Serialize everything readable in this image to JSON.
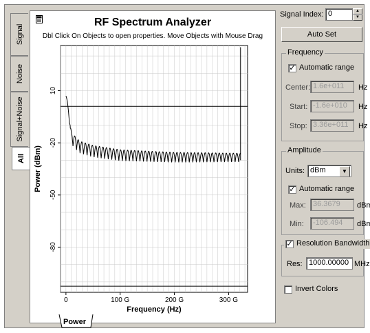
{
  "tabs": [
    {
      "label": "Signal"
    },
    {
      "label": "Noise"
    },
    {
      "label": "Signal+Noise"
    },
    {
      "label": "All",
      "active": true
    }
  ],
  "chart": {
    "title": "RF Spectrum Analyzer",
    "subtitle": "Dbl Click On Objects to open properties.  Move Objects with Mouse Drag",
    "bottom_tab": "Power"
  },
  "chart_data": {
    "type": "line",
    "title": "RF Spectrum Analyzer",
    "xlabel": "Frequency (Hz)",
    "ylabel": "Power (dBm)",
    "xlim": [
      -10,
      335
    ],
    "ylim": [
      -106,
      36
    ],
    "x_unit_note": "GHz",
    "x_ticks": [
      {
        "v": 0,
        "label": "0"
      },
      {
        "v": 100,
        "label": "100 G"
      },
      {
        "v": 200,
        "label": "200 G"
      },
      {
        "v": 300,
        "label": "300 G"
      }
    ],
    "y_ticks": [
      {
        "v": 10,
        "label": "10"
      },
      {
        "v": -20,
        "label": "-20"
      },
      {
        "v": -50,
        "label": "-50"
      },
      {
        "v": -80,
        "label": "-80"
      }
    ],
    "grid": true,
    "series": [
      {
        "decay": [
          [
            0,
            7
          ],
          [
            10,
            -17
          ],
          [
            25,
            -22
          ],
          [
            50,
            -24.5
          ],
          [
            100,
            -27
          ],
          [
            200,
            -28.5
          ],
          [
            320,
            -29
          ]
        ],
        "lobe_spacing_ghz": 6.5,
        "x_end": 322
      }
    ],
    "reference_lines": [
      {
        "orientation": "horizontal",
        "y": 1
      },
      {
        "orientation": "horizontal",
        "y": -102.5
      },
      {
        "orientation": "vertical",
        "x": 322,
        "y_range": [
          -30,
          35
        ]
      }
    ]
  },
  "controls": {
    "signal_index_label": "Signal Index:",
    "signal_index_value": "0",
    "auto_set_label": "Auto Set",
    "frequency": {
      "title": "Frequency",
      "automatic_range_label": "Automatic range",
      "automatic_range_checked": true,
      "center_label": "Center:",
      "center_value": "1.6e+011",
      "start_label": "Start:",
      "start_value": "-1.6e+010",
      "stop_label": "Stop:",
      "stop_value": "3.36e+011",
      "unit": "Hz"
    },
    "amplitude": {
      "title": "Amplitude",
      "units_label": "Units:",
      "units_value": "dBm",
      "automatic_range_label": "Automatic range",
      "automatic_range_checked": true,
      "max_label": "Max:",
      "max_value": "36.3679",
      "min_label": "Min:",
      "min_value": "-106.494",
      "unit": "dBm"
    },
    "resolution": {
      "title": "Resolution Bandwidth",
      "checked": true,
      "res_label": "Res:",
      "res_value": "1000.00000",
      "unit": "MHz"
    },
    "invert_colors_label": "Invert Colors",
    "invert_colors_checked": false
  },
  "colors": {
    "trace": "#000000",
    "grid": "#c8c8c8",
    "panel": "#d4d0c8"
  }
}
